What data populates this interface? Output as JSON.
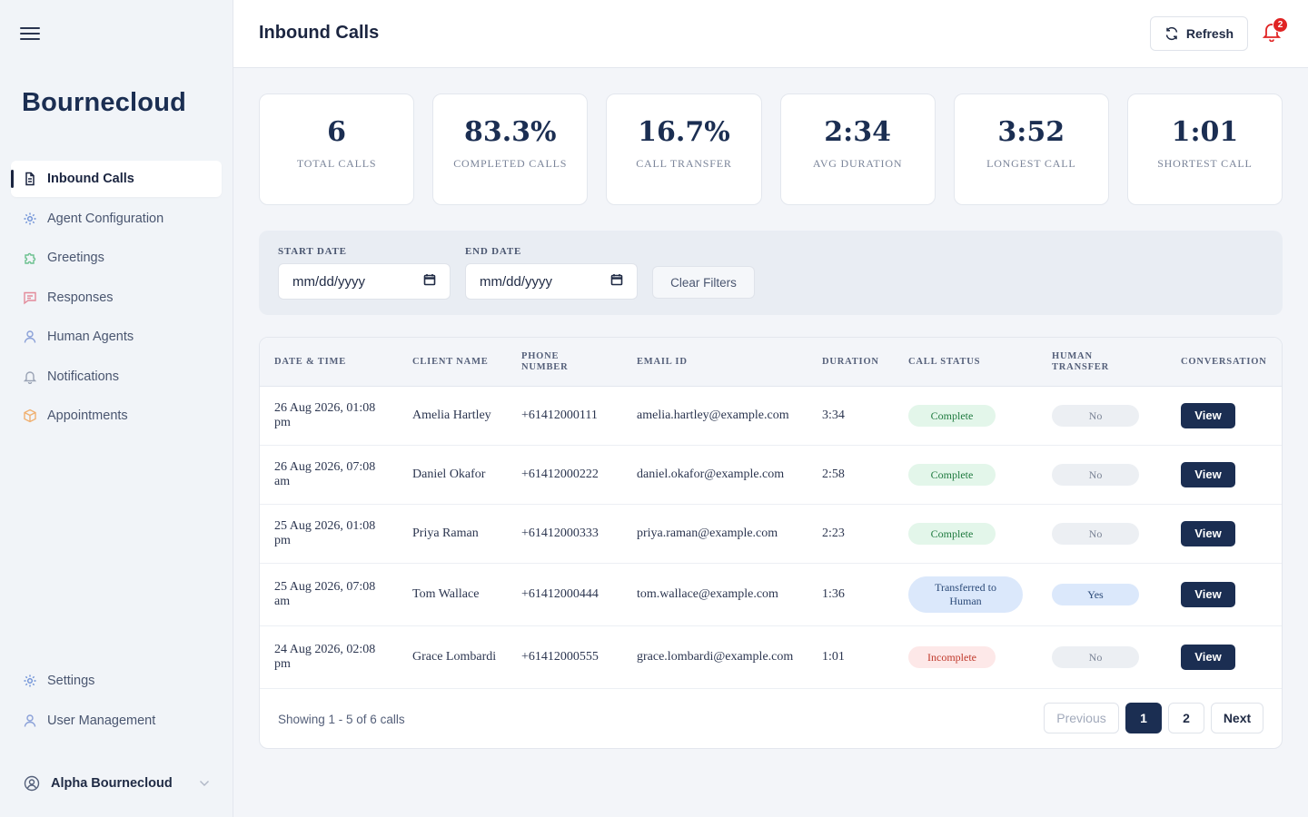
{
  "app": {
    "brand": "Bournecloud"
  },
  "sidebar": {
    "items": [
      {
        "label": "Inbound Calls",
        "icon": "document-icon",
        "active": true
      },
      {
        "label": "Agent Configuration",
        "icon": "gear-icon"
      },
      {
        "label": "Greetings",
        "icon": "puzzle-icon"
      },
      {
        "label": "Responses",
        "icon": "chat-icon"
      },
      {
        "label": "Human Agents",
        "icon": "person-icon"
      },
      {
        "label": "Notifications",
        "icon": "bell-icon"
      },
      {
        "label": "Appointments",
        "icon": "box-icon"
      }
    ],
    "bottom_items": [
      {
        "label": "Settings",
        "icon": "gear-icon"
      },
      {
        "label": "User Management",
        "icon": "person-icon"
      }
    ],
    "user": {
      "name": "Alpha Bournecloud"
    }
  },
  "header": {
    "title": "Inbound Calls",
    "refresh_label": "Refresh",
    "notification_count": "2"
  },
  "stats": [
    {
      "value": "6",
      "label": "TOTAL CALLS"
    },
    {
      "value": "83.3%",
      "label": "COMPLETED CALLS"
    },
    {
      "value": "16.7%",
      "label": "CALL TRANSFER"
    },
    {
      "value": "2:34",
      "label": "AVG DURATION"
    },
    {
      "value": "3:52",
      "label": "LONGEST CALL"
    },
    {
      "value": "1:01",
      "label": "SHORTEST CALL"
    }
  ],
  "filters": {
    "start_label": "START DATE",
    "start_placeholder": "mm/dd/yyyy",
    "end_label": "END DATE",
    "end_placeholder": "mm/dd/yyyy",
    "clear_label": "Clear Filters"
  },
  "table": {
    "columns": [
      "DATE & TIME",
      "CLIENT NAME",
      "PHONE NUMBER",
      "EMAIL ID",
      "DURATION",
      "CALL STATUS",
      "HUMAN TRANSFER",
      "CONVERSATION"
    ],
    "rows": [
      {
        "datetime": "26 Aug 2026, 01:08 pm",
        "client": "Amelia Hartley",
        "phone": "+61412000111",
        "email": "amelia.hartley@example.com",
        "duration": "3:34",
        "status": "Complete",
        "status_kind": "complete",
        "transfer": "No",
        "action": "View"
      },
      {
        "datetime": "26 Aug 2026, 07:08 am",
        "client": "Daniel Okafor",
        "phone": "+61412000222",
        "email": "daniel.okafor@example.com",
        "duration": "2:58",
        "status": "Complete",
        "status_kind": "complete",
        "transfer": "No",
        "action": "View"
      },
      {
        "datetime": "25 Aug 2026, 01:08 pm",
        "client": "Priya Raman",
        "phone": "+61412000333",
        "email": "priya.raman@example.com",
        "duration": "2:23",
        "status": "Complete",
        "status_kind": "complete",
        "transfer": "No",
        "action": "View"
      },
      {
        "datetime": "25 Aug 2026, 07:08 am",
        "client": "Tom Wallace",
        "phone": "+61412000444",
        "email": "tom.wallace@example.com",
        "duration": "1:36",
        "status": "Transferred to Human",
        "status_kind": "transferred",
        "transfer": "Yes",
        "action": "View"
      },
      {
        "datetime": "24 Aug 2026, 02:08 pm",
        "client": "Grace Lombardi",
        "phone": "+61412000555",
        "email": "grace.lombardi@example.com",
        "duration": "1:01",
        "status": "Incomplete",
        "status_kind": "incomplete",
        "transfer": "No",
        "action": "View"
      }
    ]
  },
  "pagination": {
    "showing": "Showing 1 - 5 of 6 calls",
    "prev": "Previous",
    "pages": [
      "1",
      "2"
    ],
    "current": "1",
    "next": "Next"
  },
  "colors": {
    "primary": "#1b2e52",
    "complete": "#1f7a3f",
    "incomplete": "#c0392b",
    "badge": "#e02424"
  }
}
